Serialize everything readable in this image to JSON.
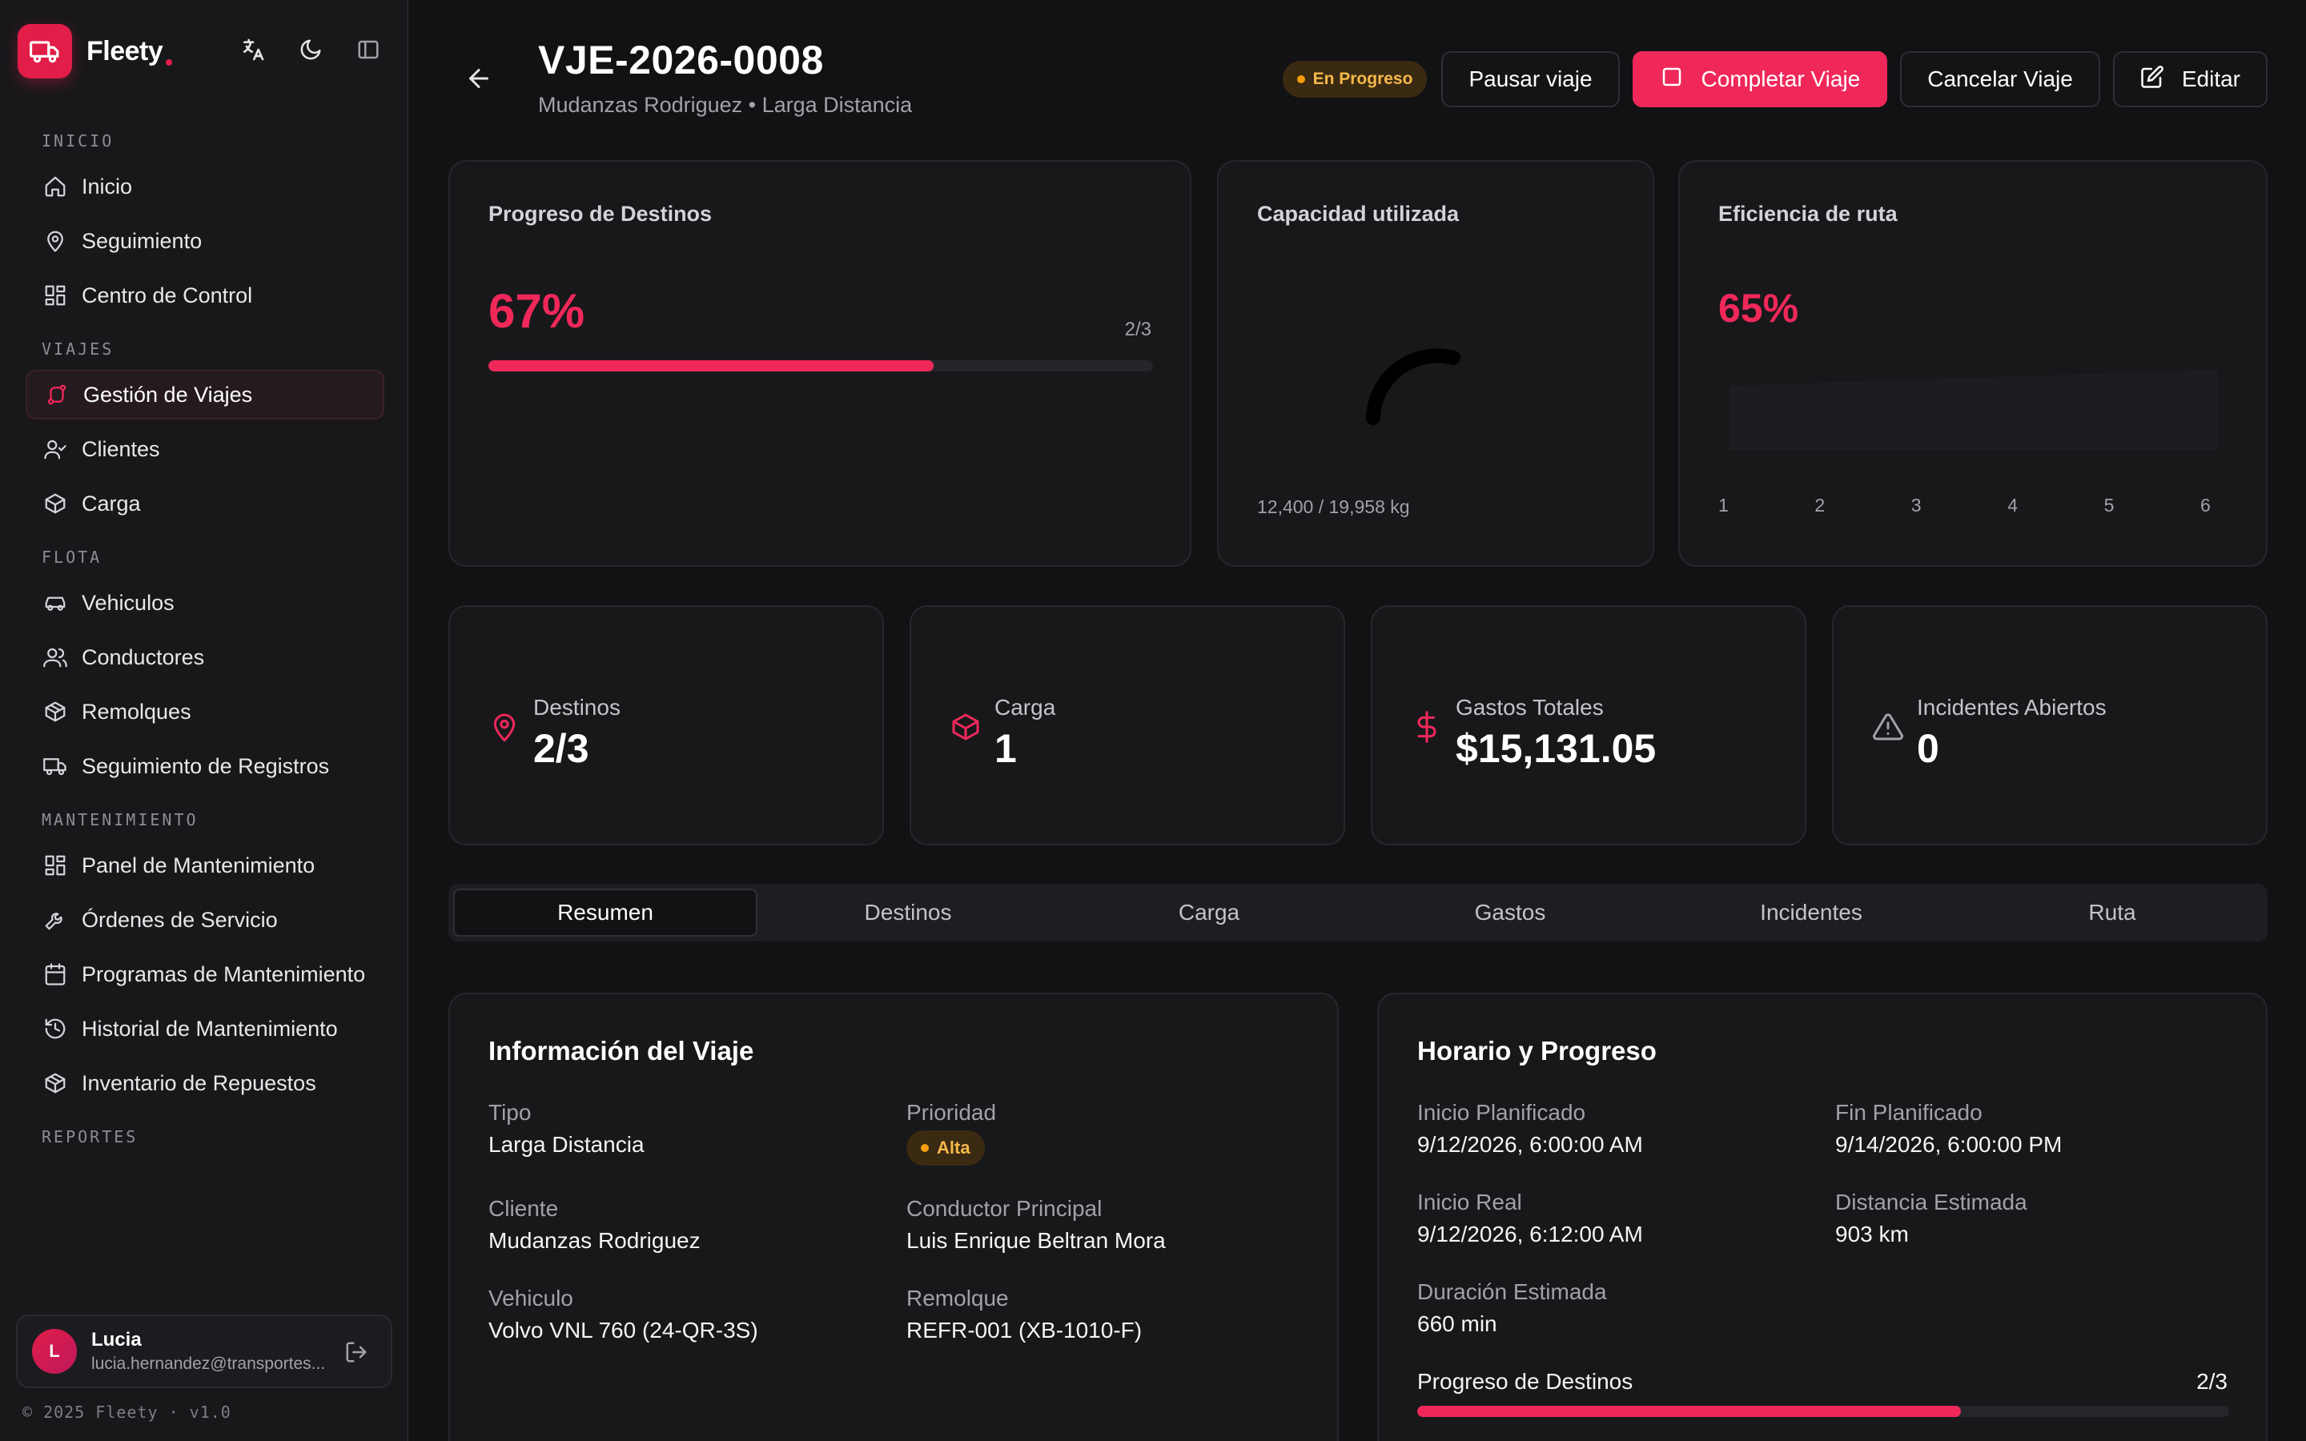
{
  "sidebar": {
    "brand": "Fleety",
    "sections": [
      {
        "title": "INICIO",
        "items": [
          {
            "label": "Inicio",
            "icon": "home-icon"
          },
          {
            "label": "Seguimiento",
            "icon": "map-pin-icon"
          },
          {
            "label": "Centro de Control",
            "icon": "grid-icon"
          }
        ]
      },
      {
        "title": "VIAJES",
        "items": [
          {
            "label": "Gestión de Viajes",
            "icon": "route-icon",
            "active": true
          },
          {
            "label": "Clientes",
            "icon": "user-check-icon"
          },
          {
            "label": "Carga",
            "icon": "package-icon"
          }
        ]
      },
      {
        "title": "FLOTA",
        "items": [
          {
            "label": "Vehiculos",
            "icon": "car-icon"
          },
          {
            "label": "Conductores",
            "icon": "users-icon"
          },
          {
            "label": "Remolques",
            "icon": "box-icon"
          },
          {
            "label": "Seguimiento de Registros",
            "icon": "truck-icon"
          }
        ]
      },
      {
        "title": "MANTENIMIENTO",
        "items": [
          {
            "label": "Panel de Mantenimiento",
            "icon": "grid-icon"
          },
          {
            "label": "Órdenes de Servicio",
            "icon": "wrench-icon"
          },
          {
            "label": "Programas de Mantenimiento",
            "icon": "calendar-icon"
          },
          {
            "label": "Historial de Mantenimiento",
            "icon": "history-icon"
          },
          {
            "label": "Inventario de Repuestos",
            "icon": "box-icon"
          }
        ]
      },
      {
        "title": "REPORTES",
        "items": []
      }
    ],
    "user": {
      "initial": "L",
      "name": "Lucia",
      "email": "lucia.hernandez@transportes..."
    },
    "copyright": "© 2025 Fleety · v1.0"
  },
  "header": {
    "title": "VJE-2026-0008",
    "subtitle": "Mudanzas Rodriguez • Larga Distancia",
    "status": "En Progreso",
    "buttons": {
      "pause": "Pausar viaje",
      "complete": "Completar Viaje",
      "cancel": "Cancelar Viaje",
      "edit": "Editar"
    }
  },
  "cards": {
    "progress": {
      "title": "Progreso de Destinos",
      "percent": "67%",
      "count": "2/3",
      "fraction": 0.67
    },
    "capacity": {
      "title": "Capacidad utilizada",
      "label": "12,400 / 19,958 kg",
      "fraction": 0.62
    },
    "efficiency": {
      "title": "Eficiencia de ruta",
      "percent": "65%",
      "ticks": [
        "1",
        "2",
        "3",
        "4",
        "5",
        "6"
      ]
    }
  },
  "stats": [
    {
      "label": "Destinos",
      "value": "2/3",
      "icon": "map-pin-icon"
    },
    {
      "label": "Carga",
      "value": "1",
      "icon": "package-icon"
    },
    {
      "label": "Gastos Totales",
      "value": "$15,131.05",
      "icon": "dollar-icon"
    },
    {
      "label": "Incidentes Abiertos",
      "value": "0",
      "icon": "alert-triangle-icon"
    }
  ],
  "tabs": [
    "Resumen",
    "Destinos",
    "Carga",
    "Gastos",
    "Incidentes",
    "Ruta"
  ],
  "trip_info": {
    "title": "Información del Viaje",
    "tipo_label": "Tipo",
    "tipo": "Larga Distancia",
    "prioridad_label": "Prioridad",
    "prioridad": "Alta",
    "cliente_label": "Cliente",
    "cliente": "Mudanzas Rodriguez",
    "conductor_label": "Conductor Principal",
    "conductor": "Luis Enrique Beltran Mora",
    "vehiculo_label": "Vehiculo",
    "vehiculo": "Volvo VNL 760 (24-QR-3S)",
    "remolque_label": "Remolque",
    "remolque": "REFR-001 (XB-1010-F)"
  },
  "schedule": {
    "title": "Horario y Progreso",
    "inicio_plan_label": "Inicio Planificado",
    "inicio_plan": "9/12/2026, 6:00:00 AM",
    "fin_plan_label": "Fin Planificado",
    "fin_plan": "9/14/2026, 6:00:00 PM",
    "inicio_real_label": "Inicio Real",
    "inicio_real": "9/12/2026, 6:12:00 AM",
    "distancia_label": "Distancia Estimada",
    "distancia": "903 km",
    "duracion_label": "Duración Estimada",
    "duracion": "660 min",
    "progreso_label": "Progreso de Destinos",
    "progreso": "2/3",
    "fraction": 0.67
  },
  "colors": {
    "accent": "#f0285a",
    "warning": "#f59e0b"
  }
}
